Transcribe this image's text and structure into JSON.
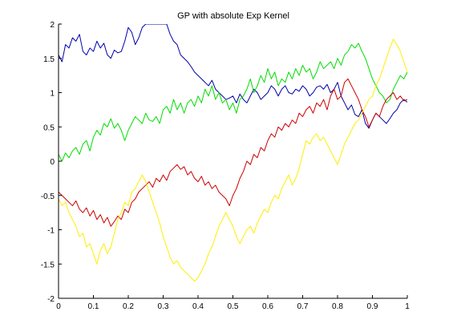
{
  "chart_data": {
    "type": "line",
    "title": "GP with absolute Exp Kernel",
    "xlabel": "",
    "ylabel": "",
    "xlim": [
      0,
      1
    ],
    "ylim": [
      -2,
      2
    ],
    "xticks": [
      "0",
      "0.1",
      "0.2",
      "0.3",
      "0.4",
      "0.5",
      "0.6",
      "0.7",
      "0.8",
      "0.9",
      "1"
    ],
    "yticks": [
      "-2",
      "-1.5",
      "-1",
      "-0.5",
      "0",
      "0.5",
      "1",
      "1.5",
      "2"
    ],
    "grid": false,
    "legend": "none",
    "series": [
      {
        "color": "#0000aa",
        "x": [
          0,
          0.01,
          0.02,
          0.03,
          0.04,
          0.05,
          0.06,
          0.07,
          0.08,
          0.09,
          0.1,
          0.11,
          0.12,
          0.13,
          0.14,
          0.15,
          0.16,
          0.17,
          0.18,
          0.19,
          0.2,
          0.21,
          0.22,
          0.23,
          0.24,
          0.25,
          0.31,
          0.32,
          0.33,
          0.34,
          0.35,
          0.36,
          0.37,
          0.38,
          0.39,
          0.4,
          0.41,
          0.42,
          0.43,
          0.44,
          0.45,
          0.46,
          0.47,
          0.48,
          0.49,
          0.5,
          0.51,
          0.52,
          0.53,
          0.54,
          0.55,
          0.56,
          0.57,
          0.58,
          0.59,
          0.6,
          0.61,
          0.62,
          0.63,
          0.64,
          0.65,
          0.66,
          0.67,
          0.68,
          0.69,
          0.7,
          0.71,
          0.72,
          0.73,
          0.74,
          0.75,
          0.76,
          0.77,
          0.78,
          0.79,
          0.8,
          0.81,
          0.82,
          0.83,
          0.84,
          0.85,
          0.86,
          0.87,
          0.88,
          0.89,
          0.9,
          0.91,
          0.92,
          0.93,
          0.94,
          0.95,
          0.96,
          0.97,
          0.98,
          0.99,
          1
        ],
        "y": [
          1.55,
          1.45,
          1.7,
          1.65,
          1.8,
          1.75,
          1.85,
          1.6,
          1.55,
          1.65,
          1.6,
          1.75,
          1.65,
          1.72,
          1.55,
          1.5,
          1.62,
          1.58,
          1.6,
          1.75,
          1.95,
          1.88,
          1.7,
          1.8,
          1.95,
          2.0,
          2.0,
          1.85,
          1.75,
          1.7,
          1.55,
          1.5,
          1.45,
          1.38,
          1.3,
          1.25,
          1.2,
          1.15,
          1.1,
          1.18,
          1.05,
          1.0,
          0.95,
          0.9,
          0.92,
          0.95,
          0.85,
          0.98,
          0.9,
          0.85,
          0.95,
          1.05,
          1.0,
          0.9,
          0.95,
          1.0,
          1.1,
          1.05,
          0.95,
          1.05,
          1.1,
          1.0,
          0.98,
          1.05,
          1.02,
          1.1,
          1.05,
          0.95,
          1.0,
          1.08,
          1.1,
          1.05,
          1.12,
          1.0,
          1.05,
          1.15,
          0.95,
          0.85,
          0.75,
          0.82,
          0.68,
          0.65,
          0.75,
          0.55,
          0.48,
          0.6,
          0.7,
          0.65,
          0.6,
          0.55,
          0.62,
          0.7,
          0.75,
          0.85,
          0.9,
          0.86
        ]
      },
      {
        "color": "#00dd00",
        "x": [
          0,
          0.01,
          0.02,
          0.03,
          0.04,
          0.05,
          0.06,
          0.07,
          0.08,
          0.09,
          0.1,
          0.11,
          0.12,
          0.13,
          0.14,
          0.15,
          0.16,
          0.17,
          0.18,
          0.19,
          0.2,
          0.21,
          0.22,
          0.23,
          0.24,
          0.25,
          0.26,
          0.27,
          0.28,
          0.29,
          0.3,
          0.31,
          0.32,
          0.33,
          0.34,
          0.35,
          0.36,
          0.37,
          0.38,
          0.39,
          0.4,
          0.41,
          0.42,
          0.43,
          0.44,
          0.45,
          0.46,
          0.47,
          0.48,
          0.49,
          0.5,
          0.51,
          0.52,
          0.53,
          0.54,
          0.55,
          0.56,
          0.57,
          0.58,
          0.59,
          0.6,
          0.61,
          0.62,
          0.63,
          0.64,
          0.65,
          0.66,
          0.67,
          0.68,
          0.69,
          0.7,
          0.71,
          0.72,
          0.73,
          0.74,
          0.75,
          0.76,
          0.77,
          0.78,
          0.79,
          0.8,
          0.81,
          0.82,
          0.83,
          0.84,
          0.85,
          0.86,
          0.87,
          0.88,
          0.89,
          0.9,
          0.91,
          0.92,
          0.93,
          0.94,
          0.95,
          0.96,
          0.97,
          0.98,
          0.99,
          1
        ],
        "y": [
          0.1,
          0.0,
          0.12,
          0.05,
          0.15,
          0.2,
          0.1,
          0.25,
          0.3,
          0.15,
          0.35,
          0.45,
          0.38,
          0.55,
          0.5,
          0.62,
          0.48,
          0.55,
          0.45,
          0.3,
          0.45,
          0.55,
          0.65,
          0.6,
          0.55,
          0.7,
          0.6,
          0.58,
          0.65,
          0.55,
          0.75,
          0.8,
          0.7,
          0.9,
          0.75,
          0.85,
          0.7,
          0.85,
          0.9,
          0.8,
          0.95,
          0.85,
          1.05,
          0.95,
          1.1,
          0.9,
          1.0,
          0.85,
          0.9,
          0.75,
          0.85,
          0.7,
          0.9,
          0.95,
          1.05,
          1.2,
          1.0,
          1.1,
          1.25,
          1.15,
          1.35,
          1.2,
          1.3,
          1.1,
          1.2,
          1.15,
          1.3,
          1.2,
          1.35,
          1.25,
          1.4,
          1.3,
          1.35,
          1.2,
          1.3,
          1.45,
          1.35,
          1.4,
          1.45,
          1.35,
          1.5,
          1.4,
          1.55,
          1.6,
          1.7,
          1.65,
          1.72,
          1.6,
          1.5,
          1.35,
          1.2,
          1.1,
          1.0,
          0.95,
          0.85,
          0.9,
          1.05,
          1.15,
          1.25,
          1.2,
          1.3
        ]
      },
      {
        "color": "#cc0000",
        "x": [
          0,
          0.01,
          0.02,
          0.03,
          0.04,
          0.05,
          0.06,
          0.07,
          0.08,
          0.09,
          0.1,
          0.11,
          0.12,
          0.13,
          0.14,
          0.15,
          0.16,
          0.17,
          0.18,
          0.19,
          0.2,
          0.21,
          0.22,
          0.23,
          0.24,
          0.25,
          0.26,
          0.27,
          0.28,
          0.29,
          0.3,
          0.31,
          0.32,
          0.33,
          0.34,
          0.35,
          0.36,
          0.37,
          0.38,
          0.39,
          0.4,
          0.41,
          0.42,
          0.43,
          0.44,
          0.45,
          0.46,
          0.47,
          0.48,
          0.49,
          0.5,
          0.51,
          0.52,
          0.53,
          0.54,
          0.55,
          0.56,
          0.57,
          0.58,
          0.59,
          0.6,
          0.61,
          0.62,
          0.63,
          0.64,
          0.65,
          0.66,
          0.67,
          0.68,
          0.69,
          0.7,
          0.71,
          0.72,
          0.73,
          0.74,
          0.75,
          0.76,
          0.77,
          0.78,
          0.79,
          0.8,
          0.81,
          0.82,
          0.83,
          0.84,
          0.85,
          0.86,
          0.87,
          0.88,
          0.89,
          0.9,
          0.91,
          0.92,
          0.93,
          0.94,
          0.95,
          0.96,
          0.97,
          0.98,
          0.99,
          1
        ],
        "y": [
          -0.45,
          -0.5,
          -0.55,
          -0.6,
          -0.65,
          -0.58,
          -0.7,
          -0.75,
          -0.68,
          -0.8,
          -0.72,
          -0.85,
          -0.78,
          -0.9,
          -0.82,
          -0.95,
          -0.88,
          -0.8,
          -0.85,
          -0.7,
          -0.75,
          -0.6,
          -0.55,
          -0.45,
          -0.4,
          -0.35,
          -0.3,
          -0.38,
          -0.25,
          -0.3,
          -0.2,
          -0.28,
          -0.15,
          -0.1,
          -0.05,
          -0.12,
          -0.08,
          -0.2,
          -0.15,
          -0.25,
          -0.3,
          -0.22,
          -0.35,
          -0.3,
          -0.4,
          -0.35,
          -0.45,
          -0.5,
          -0.55,
          -0.65,
          -0.5,
          -0.4,
          -0.25,
          -0.15,
          0.0,
          -0.05,
          0.1,
          0.05,
          0.2,
          0.15,
          0.3,
          0.4,
          0.35,
          0.5,
          0.45,
          0.55,
          0.5,
          0.6,
          0.55,
          0.7,
          0.65,
          0.75,
          0.8,
          0.7,
          0.85,
          0.8,
          0.9,
          0.75,
          0.95,
          1.05,
          0.9,
          0.95,
          1.15,
          1.2,
          1.1,
          1.0,
          0.9,
          0.75,
          0.65,
          0.5,
          0.6,
          0.7,
          0.65,
          0.8,
          0.9,
          0.95,
          1.0,
          0.9,
          0.95,
          0.88,
          0.9
        ]
      },
      {
        "color": "#ffee00",
        "x": [
          0,
          0.01,
          0.02,
          0.03,
          0.04,
          0.05,
          0.06,
          0.07,
          0.08,
          0.09,
          0.1,
          0.11,
          0.12,
          0.13,
          0.14,
          0.15,
          0.16,
          0.17,
          0.18,
          0.19,
          0.2,
          0.21,
          0.22,
          0.23,
          0.24,
          0.25,
          0.26,
          0.27,
          0.28,
          0.29,
          0.3,
          0.31,
          0.32,
          0.33,
          0.34,
          0.35,
          0.36,
          0.37,
          0.38,
          0.39,
          0.4,
          0.41,
          0.42,
          0.43,
          0.44,
          0.45,
          0.46,
          0.47,
          0.48,
          0.49,
          0.5,
          0.51,
          0.52,
          0.53,
          0.54,
          0.55,
          0.56,
          0.57,
          0.58,
          0.59,
          0.6,
          0.61,
          0.62,
          0.63,
          0.64,
          0.65,
          0.66,
          0.67,
          0.68,
          0.69,
          0.7,
          0.71,
          0.72,
          0.73,
          0.74,
          0.75,
          0.76,
          0.77,
          0.78,
          0.79,
          0.8,
          0.81,
          0.82,
          0.83,
          0.84,
          0.85,
          0.86,
          0.87,
          0.88,
          0.89,
          0.9,
          0.91,
          0.92,
          0.93,
          0.94,
          0.95,
          0.96,
          0.97,
          0.98,
          0.99,
          1
        ],
        "y": [
          -0.55,
          -0.65,
          -0.6,
          -0.75,
          -0.85,
          -0.95,
          -1.1,
          -1.05,
          -1.25,
          -1.2,
          -1.35,
          -1.5,
          -1.3,
          -1.2,
          -1.35,
          -1.25,
          -1.05,
          -0.85,
          -0.75,
          -0.6,
          -0.65,
          -0.45,
          -0.4,
          -0.3,
          -0.2,
          -0.3,
          -0.45,
          -0.6,
          -0.75,
          -0.9,
          -1.1,
          -1.25,
          -1.4,
          -1.5,
          -1.45,
          -1.55,
          -1.6,
          -1.65,
          -1.7,
          -1.75,
          -1.7,
          -1.6,
          -1.5,
          -1.35,
          -1.25,
          -1.1,
          -0.95,
          -0.85,
          -0.75,
          -0.85,
          -0.95,
          -1.1,
          -1.2,
          -1.1,
          -1.0,
          -0.95,
          -1.05,
          -0.9,
          -0.8,
          -0.7,
          -0.75,
          -0.6,
          -0.5,
          -0.55,
          -0.4,
          -0.3,
          -0.2,
          -0.35,
          -0.25,
          -0.1,
          0.1,
          0.3,
          0.25,
          0.35,
          0.4,
          0.3,
          0.35,
          0.25,
          0.15,
          0.05,
          -0.05,
          0.1,
          0.25,
          0.35,
          0.45,
          0.55,
          0.6,
          0.7,
          0.8,
          0.9,
          0.95,
          1.1,
          1.2,
          1.35,
          1.5,
          1.65,
          1.78,
          1.7,
          1.6,
          1.45,
          1.3
        ]
      }
    ]
  }
}
